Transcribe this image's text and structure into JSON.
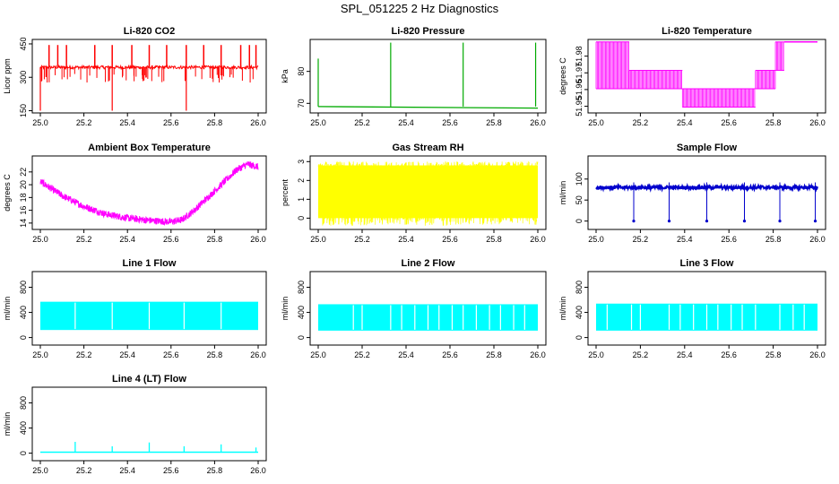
{
  "figure_title": "SPL_051225  2 Hz Diagnostics",
  "chart_data": [
    {
      "id": "co2",
      "type": "line",
      "title": "Li-820 CO2",
      "ylabel": "Licor ppm",
      "xlim": [
        25.0,
        26.0
      ],
      "xticks": [
        "25.0",
        "25.2",
        "25.4",
        "25.6",
        "25.8",
        "26.0"
      ],
      "ylim": [
        140,
        470
      ],
      "yticks": [
        "150",
        "300",
        "450"
      ],
      "yticks_values": [
        150,
        300,
        450
      ],
      "color": "#ff0000",
      "baseline": 345,
      "spikes_up": [
        25.04,
        25.08,
        25.12,
        25.25,
        25.33,
        25.42,
        25.5,
        25.58,
        25.67,
        25.75,
        25.83,
        25.92,
        25.96,
        25.99
      ],
      "spike_up_value": 445,
      "spikes_down": [
        25.0,
        25.33,
        25.67
      ],
      "spike_down_value": 150,
      "summary": "baseline ~345 ppm with periodic spikes to ~445 ppm and dips to ~150 ppm"
    },
    {
      "id": "pressure",
      "type": "line",
      "title": "Li-820 Pressure",
      "ylabel": "kPa",
      "xlim": [
        25.0,
        26.0
      ],
      "xticks": [
        "25.0",
        "25.2",
        "25.4",
        "25.6",
        "25.8",
        "26.0"
      ],
      "ylim": [
        67,
        90
      ],
      "yticks": [
        "70",
        "80"
      ],
      "yticks_values": [
        70,
        80
      ],
      "color": "#00aa00",
      "baseline_start": 69.0,
      "baseline_end": 68.5,
      "spikes": [
        {
          "x": 25.0,
          "y": 84
        },
        {
          "x": 25.33,
          "y": 89
        },
        {
          "x": 25.66,
          "y": 89
        },
        {
          "x": 25.99,
          "y": 89
        }
      ]
    },
    {
      "id": "temperature",
      "type": "line",
      "title": "Li-820 Temperature",
      "ylabel": "degrees C",
      "xlim": [
        25.0,
        26.0
      ],
      "xticks": [
        "25.0",
        "25.2",
        "25.4",
        "25.6",
        "25.8",
        "26.0"
      ],
      "ylim": [
        51.946,
        51.99
      ],
      "yticks": [
        "51.95",
        "51.96",
        "51.97",
        "51.98"
      ],
      "yticks_values": [
        51.95,
        51.96,
        51.97,
        51.98
      ],
      "color": "#ff00ff",
      "levels": [
        {
          "x0": 25.0,
          "x1": 25.15,
          "low": 51.9605,
          "high": 51.9885
        },
        {
          "x0": 25.15,
          "x1": 25.39,
          "low": 51.9605,
          "high": 51.9715
        },
        {
          "x0": 25.39,
          "x1": 25.72,
          "low": 51.9495,
          "high": 51.9605
        },
        {
          "x0": 25.72,
          "x1": 25.81,
          "low": 51.9605,
          "high": 51.9715
        },
        {
          "x0": 25.81,
          "x1": 25.85,
          "low": 51.9715,
          "high": 51.9885
        },
        {
          "x0": 25.85,
          "x1": 26.0,
          "low": 51.9885,
          "high": 51.9885
        }
      ]
    },
    {
      "id": "ambient",
      "type": "line",
      "title": "Ambient Box Temperature",
      "ylabel": "degrees C",
      "xlim": [
        25.0,
        26.0
      ],
      "xticks": [
        "25.0",
        "25.2",
        "25.4",
        "25.6",
        "25.8",
        "26.0"
      ],
      "ylim": [
        13.0,
        24.5
      ],
      "yticks": [
        "14",
        "16",
        "18",
        "20",
        "22"
      ],
      "yticks_values": [
        14,
        16,
        18,
        20,
        22
      ],
      "color": "#ff00ff",
      "x": [
        25.0,
        25.1,
        25.2,
        25.3,
        25.4,
        25.5,
        25.6,
        25.65,
        25.7,
        25.8,
        25.9,
        25.95,
        26.0
      ],
      "y": [
        20.5,
        18.3,
        16.6,
        15.4,
        14.8,
        14.4,
        14.2,
        14.5,
        15.8,
        19.0,
        22.3,
        23.2,
        22.8
      ]
    },
    {
      "id": "rh",
      "type": "line",
      "title": "Gas Stream RH",
      "ylabel": "percent",
      "xlim": [
        25.0,
        26.0
      ],
      "xticks": [
        "25.0",
        "25.2",
        "25.4",
        "25.6",
        "25.8",
        "26.0"
      ],
      "ylim": [
        -0.6,
        3.3
      ],
      "yticks": [
        "0",
        "1",
        "2",
        "3"
      ],
      "yticks_values": [
        0,
        1,
        2,
        3
      ],
      "color": "#ffff00",
      "band_low": 0.0,
      "band_high": 2.8,
      "noise_min": -0.4,
      "noise_max": 3.0
    },
    {
      "id": "sampleflow",
      "type": "line",
      "title": "Sample Flow",
      "ylabel": "ml/min",
      "xlim": [
        25.0,
        26.0
      ],
      "xticks": [
        "25.0",
        "25.2",
        "25.4",
        "25.6",
        "25.8",
        "26.0"
      ],
      "ylim": [
        -20,
        155
      ],
      "yticks": [
        "0",
        "50",
        "100"
      ],
      "yticks_values": [
        0,
        50,
        100
      ],
      "color": "#0000cc",
      "baseline": 80,
      "dips": [
        25.17,
        25.33,
        25.5,
        25.67,
        25.83,
        25.99
      ],
      "dip_value": 0,
      "spike_value": 92
    },
    {
      "id": "line1",
      "type": "area",
      "title": "Line 1 Flow",
      "ylabel": "ml/min",
      "xlim": [
        25.0,
        26.0
      ],
      "xticks": [
        "25.0",
        "25.2",
        "25.4",
        "25.6",
        "25.8",
        "26.0"
      ],
      "ylim": [
        -120,
        1050
      ],
      "yticks": [
        "0",
        "400",
        "800"
      ],
      "yticks_values": [
        0,
        400,
        800
      ],
      "color": "#00ffff",
      "band_low": 120,
      "band_high": 570,
      "gaps": [
        25.16,
        25.33,
        25.5,
        25.66,
        25.83
      ]
    },
    {
      "id": "line2",
      "type": "area",
      "title": "Line 2 Flow",
      "ylabel": "ml/min",
      "xlim": [
        25.0,
        26.0
      ],
      "xticks": [
        "25.0",
        "25.2",
        "25.4",
        "25.6",
        "25.8",
        "26.0"
      ],
      "ylim": [
        -120,
        1050
      ],
      "yticks": [
        "0",
        "400",
        "800"
      ],
      "yticks_values": [
        0,
        400,
        800
      ],
      "color": "#00ffff",
      "band_low": 110,
      "band_high": 530,
      "gaps": [
        25.16,
        25.2,
        25.33,
        25.38,
        25.44,
        25.5,
        25.55,
        25.61,
        25.66,
        25.72,
        25.78,
        25.83,
        25.89,
        25.94
      ]
    },
    {
      "id": "line3",
      "type": "area",
      "title": "Line 3 Flow",
      "ylabel": "ml/min",
      "xlim": [
        25.0,
        26.0
      ],
      "xticks": [
        "25.0",
        "25.2",
        "25.4",
        "25.6",
        "25.8",
        "26.0"
      ],
      "ylim": [
        -120,
        1050
      ],
      "yticks": [
        "0",
        "400",
        "800"
      ],
      "yticks_values": [
        0,
        400,
        800
      ],
      "color": "#00ffff",
      "band_low": 110,
      "band_high": 540,
      "gaps": [
        25.05,
        25.16,
        25.2,
        25.33,
        25.38,
        25.44,
        25.5,
        25.55,
        25.61,
        25.66,
        25.72,
        25.83,
        25.89,
        25.94
      ]
    },
    {
      "id": "line4",
      "type": "line",
      "title": "Line 4 (LT) Flow",
      "ylabel": "ml/min",
      "xlim": [
        25.0,
        26.0
      ],
      "xticks": [
        "25.0",
        "25.2",
        "25.4",
        "25.6",
        "25.8",
        "26.0"
      ],
      "ylim": [
        -120,
        1050
      ],
      "yticks": [
        "0",
        "400",
        "800"
      ],
      "yticks_values": [
        0,
        400,
        800
      ],
      "color": "#00ffff",
      "baseline": 15,
      "spikes": [
        {
          "x": 25.16,
          "y": 180
        },
        {
          "x": 25.33,
          "y": 110
        },
        {
          "x": 25.5,
          "y": 170
        },
        {
          "x": 25.66,
          "y": 110
        },
        {
          "x": 25.83,
          "y": 140
        },
        {
          "x": 25.99,
          "y": 90
        }
      ]
    }
  ]
}
